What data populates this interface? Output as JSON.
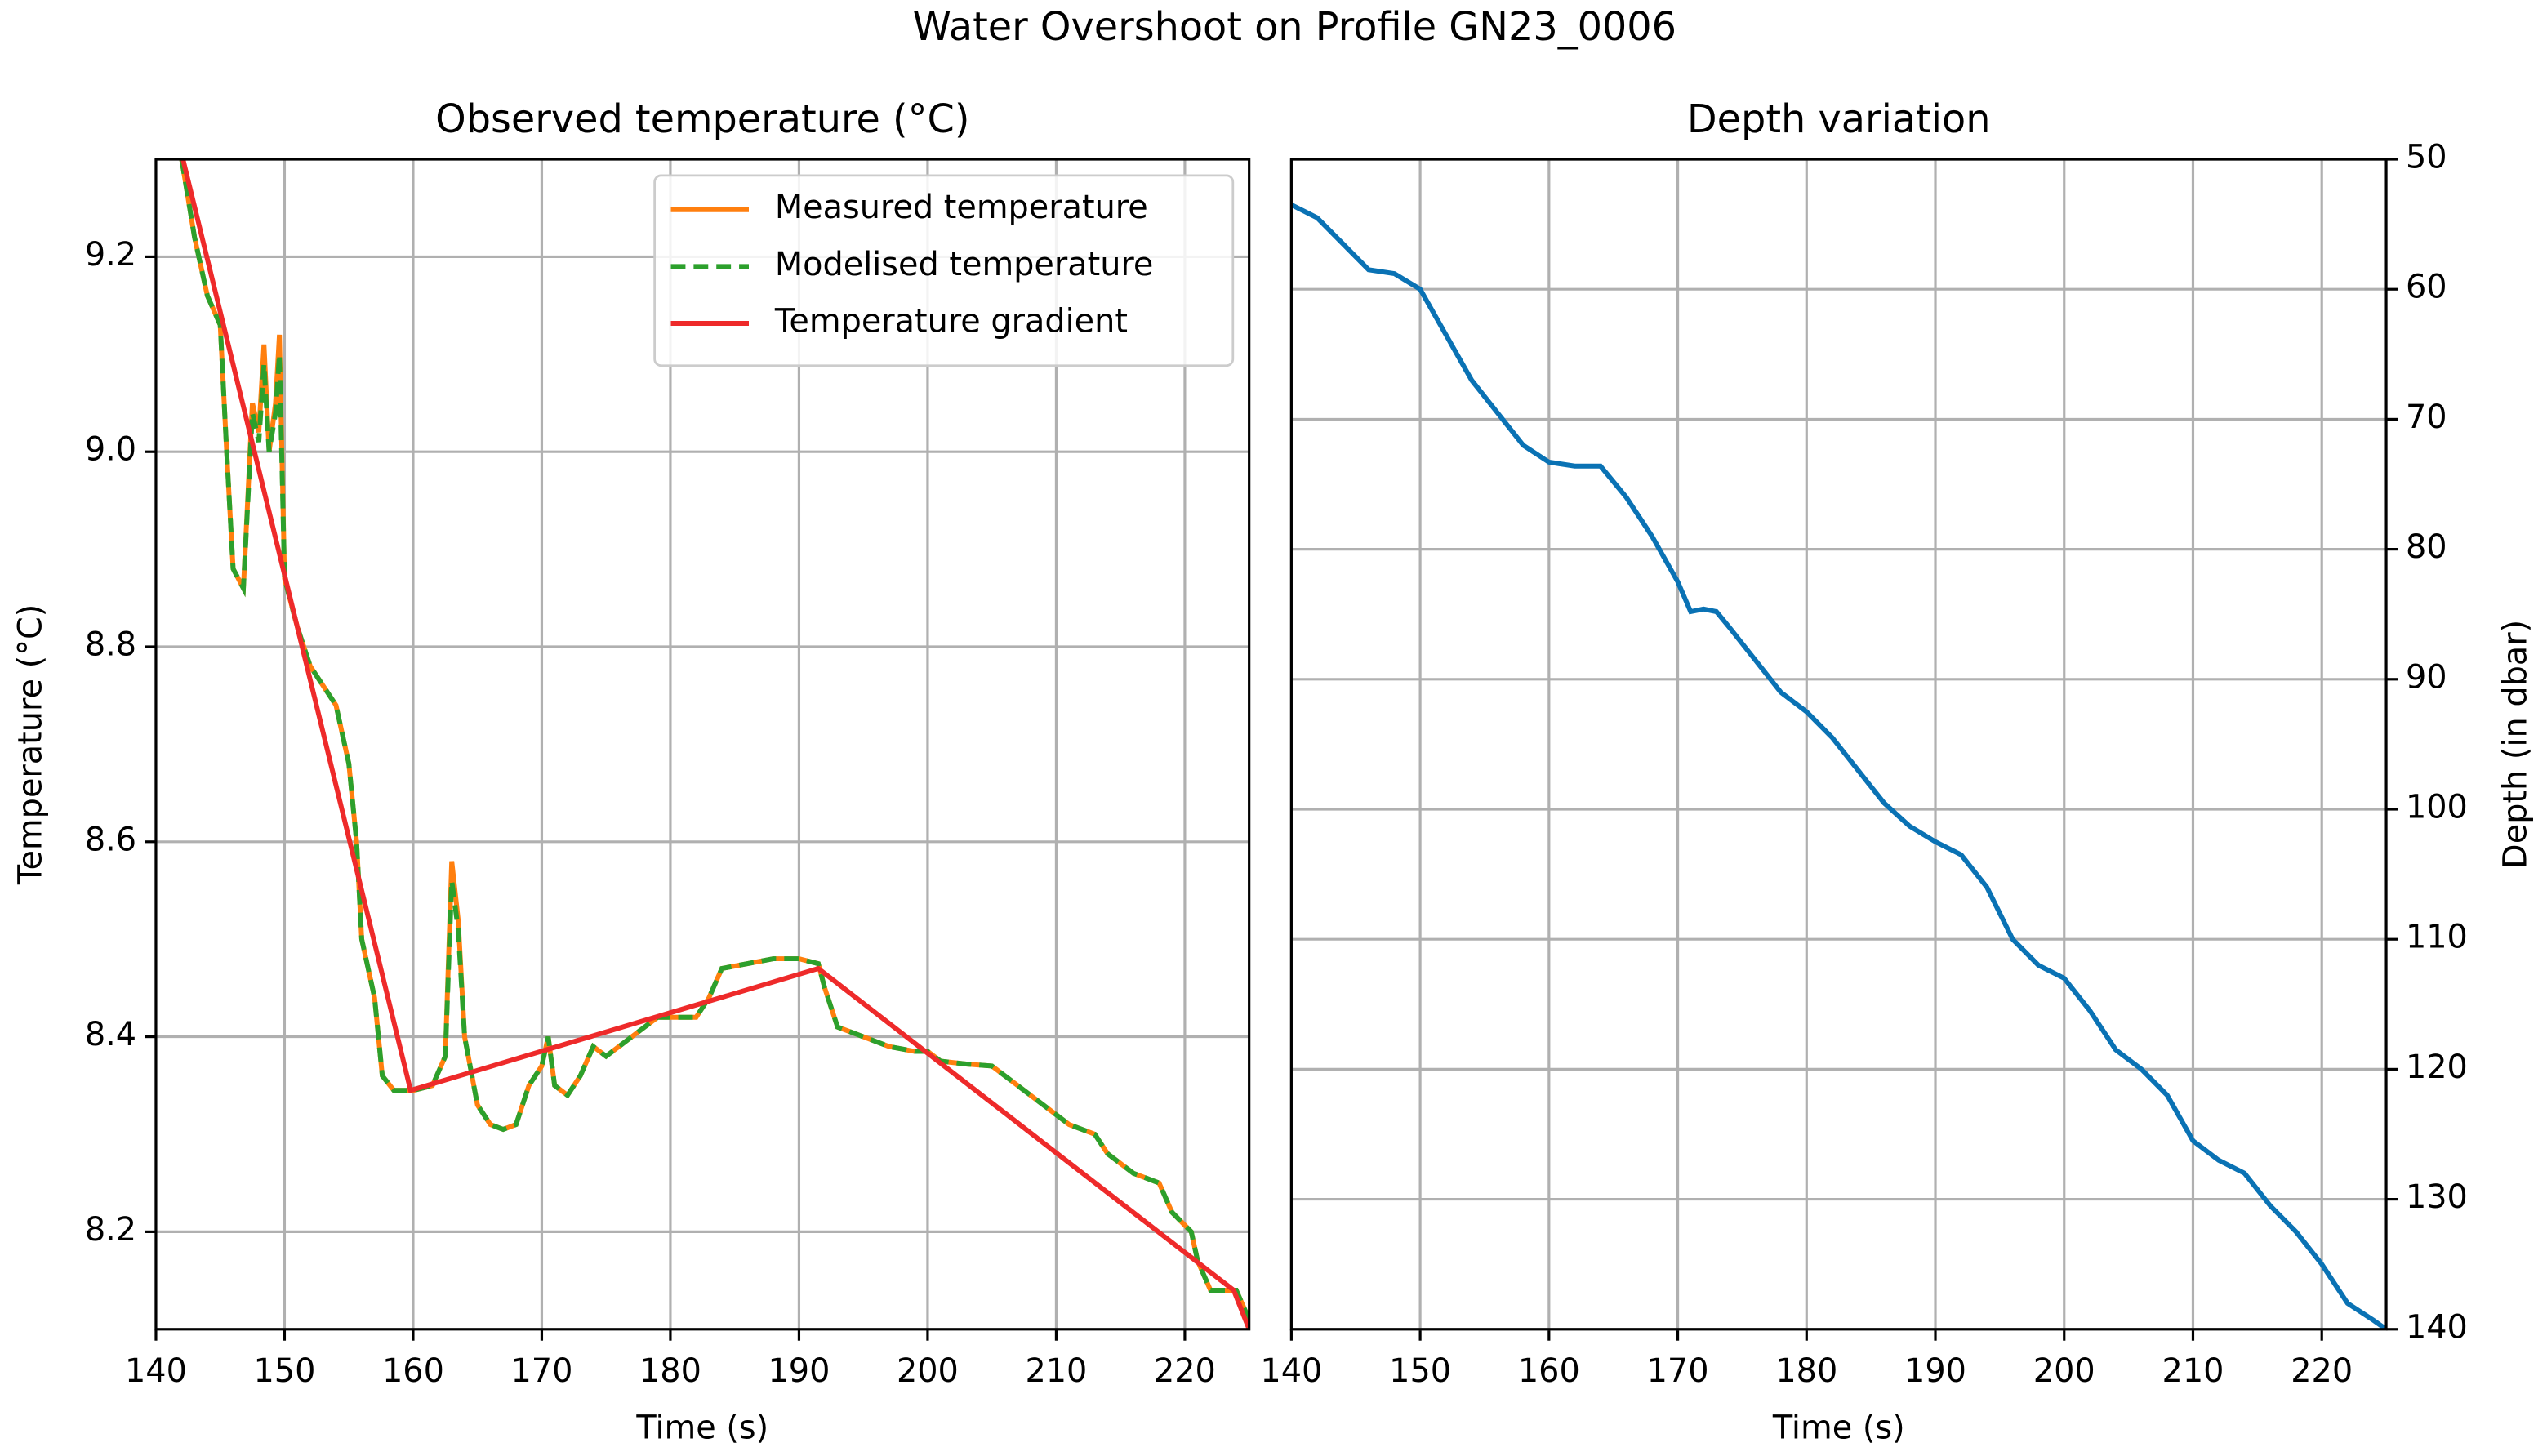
{
  "suptitle": "Water Overshoot on Profile GN23_0006",
  "chart_data": [
    {
      "type": "line",
      "title": "Observed temperature (°C)",
      "x_label": "Time (s)",
      "y_label": "Temperature (°C)",
      "xlim": [
        140,
        225
      ],
      "ylim": [
        8.1,
        9.3
      ],
      "xticks": [
        140,
        150,
        160,
        170,
        180,
        190,
        200,
        210,
        220
      ],
      "yticks": [
        8.2,
        8.4,
        8.6,
        8.8,
        {
          "value": 9,
          "label": "9.0"
        },
        9.2
      ],
      "grid": true,
      "legend": "upper right",
      "y_axis_side": "left",
      "y_inverted": false,
      "x": [
        142,
        143,
        144,
        145,
        145.5,
        146,
        146.8,
        147.5,
        148,
        148.4,
        148.8,
        149.3,
        149.6,
        150,
        151,
        152,
        153,
        154,
        155,
        155.6,
        156,
        157,
        157.6,
        158.5,
        160,
        161.5,
        162.5,
        163,
        163.5,
        164,
        165,
        166,
        167,
        168,
        169,
        170,
        170.5,
        171,
        172,
        173,
        174,
        175,
        176,
        177,
        178,
        179,
        180,
        182,
        183,
        184,
        186,
        188,
        190,
        191.5,
        192,
        193,
        195,
        197,
        199,
        200,
        201,
        203,
        205,
        207,
        209,
        211,
        213,
        214,
        216,
        218,
        219,
        220.5,
        221,
        222,
        224,
        225
      ],
      "series": [
        {
          "name": "Measured temperature",
          "color": "#ff7f0e",
          "style": "solid",
          "values": [
            9.3,
            9.22,
            9.16,
            9.13,
            9.0,
            8.88,
            8.86,
            9.05,
            9.02,
            9.11,
            9.0,
            9.05,
            9.12,
            8.87,
            8.82,
            8.78,
            8.76,
            8.74,
            8.68,
            8.6,
            8.5,
            8.44,
            8.36,
            8.345,
            8.345,
            8.35,
            8.38,
            8.58,
            8.52,
            8.4,
            8.33,
            8.31,
            8.305,
            8.31,
            8.35,
            8.37,
            8.4,
            8.35,
            8.34,
            8.36,
            8.39,
            8.38,
            8.39,
            8.4,
            8.41,
            8.42,
            8.42,
            8.42,
            8.44,
            8.47,
            8.475,
            8.48,
            8.48,
            8.475,
            8.45,
            8.41,
            8.4,
            8.39,
            8.385,
            8.385,
            8.375,
            8.372,
            8.37,
            8.35,
            8.33,
            8.31,
            8.3,
            8.28,
            8.26,
            8.25,
            8.22,
            8.2,
            8.17,
            8.14,
            8.14,
            8.11
          ]
        },
        {
          "name": "Modelised temperature",
          "color": "#2ca02c",
          "style": "dashed",
          "values": [
            9.3,
            9.22,
            9.16,
            9.13,
            9.0,
            8.88,
            8.86,
            9.04,
            9.01,
            9.09,
            9.0,
            9.04,
            9.1,
            8.87,
            8.82,
            8.78,
            8.76,
            8.74,
            8.68,
            8.6,
            8.5,
            8.44,
            8.36,
            8.345,
            8.345,
            8.35,
            8.38,
            8.56,
            8.51,
            8.4,
            8.33,
            8.31,
            8.305,
            8.31,
            8.35,
            8.37,
            8.4,
            8.35,
            8.34,
            8.36,
            8.39,
            8.38,
            8.39,
            8.4,
            8.41,
            8.42,
            8.42,
            8.42,
            8.44,
            8.47,
            8.475,
            8.48,
            8.48,
            8.475,
            8.45,
            8.41,
            8.4,
            8.39,
            8.385,
            8.385,
            8.375,
            8.372,
            8.37,
            8.35,
            8.33,
            8.31,
            8.3,
            8.28,
            8.26,
            8.25,
            8.22,
            8.2,
            8.17,
            8.14,
            8.14,
            8.11
          ]
        },
        {
          "name": "Temperature gradient",
          "color": "#ee2a2a",
          "style": "solid",
          "x": [
            142.1,
            159.8,
            191.5,
            223.8,
            225
          ],
          "values": [
            9.3,
            8.345,
            8.47,
            8.14,
            8.1
          ]
        }
      ]
    },
    {
      "type": "line",
      "title": "Depth variation",
      "x_label": "Time (s)",
      "y_label": "Depth (in dbar)",
      "xlim": [
        140,
        225
      ],
      "ylim": [
        50,
        140
      ],
      "xticks": [
        140,
        150,
        160,
        170,
        180,
        190,
        200,
        210,
        220
      ],
      "yticks": [
        50,
        60,
        70,
        80,
        90,
        100,
        110,
        120,
        130,
        140
      ],
      "grid": true,
      "y_axis_side": "right",
      "y_inverted": true,
      "x": [
        140,
        142,
        144,
        146,
        148,
        150,
        152,
        154,
        156,
        158,
        160,
        162,
        164,
        166,
        168,
        170,
        171,
        172,
        173,
        174,
        176,
        178,
        180,
        182,
        184,
        186,
        188,
        190,
        192,
        194,
        196,
        198,
        200,
        202,
        204,
        206,
        208,
        210,
        212,
        214,
        216,
        218,
        220,
        222,
        224,
        225
      ],
      "series": [
        {
          "color": "#0a72b4",
          "style": "solid",
          "values": [
            53.5,
            54.5,
            56.5,
            58.5,
            58.8,
            60,
            63.5,
            67,
            69.5,
            72,
            73.3,
            73.6,
            73.6,
            76,
            79,
            82.5,
            84.8,
            84.6,
            84.8,
            86,
            88.5,
            91,
            92.5,
            94.5,
            97,
            99.5,
            101.3,
            102.5,
            103.5,
            106,
            110,
            112,
            113,
            115.5,
            118.5,
            120,
            122,
            125.5,
            127,
            128,
            130.5,
            132.5,
            135,
            138,
            139.3,
            140
          ]
        }
      ]
    }
  ]
}
